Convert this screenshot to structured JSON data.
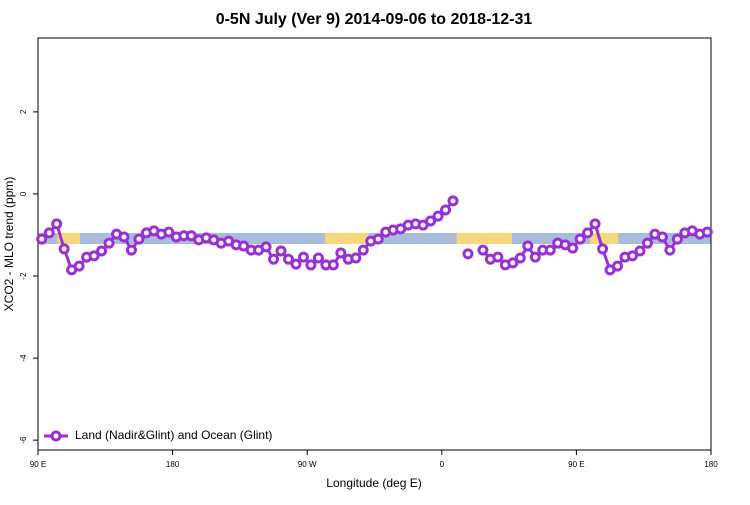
{
  "chart_data": {
    "type": "line",
    "title": "0-5N July (Ver 9)   2014-09-06 to 2018-12-31",
    "xlabel": "Longitude (deg E)",
    "ylabel": "XCO2 - MLO trend (ppm)",
    "xlim": [
      90,
      540
    ],
    "ylim": [
      -6.24,
      3.8
    ],
    "xticks": [
      {
        "value": 90,
        "label": "90 E"
      },
      180,
      {
        "value": 270,
        "label": "90 W"
      },
      {
        "value": 360,
        "label": "0"
      },
      {
        "value": 450,
        "label": "90 E"
      },
      {
        "value": 540,
        "label": "180"
      }
    ],
    "yticks": [
      -6,
      -4,
      -2,
      0,
      2
    ],
    "legend": "bottom-left",
    "band": {
      "range": [
        -1.22,
        -0.95
      ],
      "ocean_color": "#a9bcdc",
      "land_color": "#f6d77e",
      "land_segments": [
        [
          103,
          118
        ],
        [
          282,
          311
        ],
        [
          370,
          407
        ],
        [
          459,
          478
        ]
      ]
    },
    "x": [
      92.5,
      97.5,
      102.5,
      107.5,
      112.5,
      117.5,
      122.5,
      127.5,
      132.5,
      137.5,
      142.5,
      147.5,
      152.5,
      157.5,
      162.5,
      167.5,
      172.5,
      177.5,
      182.5,
      187.5,
      192.5,
      197.5,
      202.5,
      207.5,
      212.5,
      217.5,
      222.5,
      227.5,
      232.5,
      237.5,
      242.5,
      247.5,
      252.5,
      257.5,
      262.5,
      267.5,
      272.5,
      277.5,
      282.5,
      287.5,
      292.5,
      297.5,
      302.5,
      307.5,
      312.5,
      317.5,
      322.5,
      327.5,
      332.5,
      337.5,
      342.5,
      347.5,
      352.5,
      357.5,
      362.5,
      367.5,
      372.5,
      377.5,
      382.5,
      387.5,
      392.5,
      397.5,
      402.5,
      407.5,
      412.5,
      417.5,
      422.5,
      427.5,
      432.5,
      437.5,
      442.5,
      447.5,
      452.5,
      457.5,
      462.5,
      467.5,
      472.5,
      477.5,
      482.5,
      487.5,
      492.5,
      497.5,
      502.5,
      507.5,
      512.5,
      517.5,
      522.5,
      527.5,
      532.5,
      537.5
    ],
    "series": [
      {
        "name": "Land (Nadir&Glint) and Ocean (Glint)",
        "color": "#9b2fd6",
        "values": [
          -1.1,
          -0.95,
          -0.73,
          -1.34,
          -1.85,
          -1.76,
          -1.54,
          -1.51,
          -1.39,
          -1.2,
          -0.98,
          -1.05,
          -1.37,
          -1.1,
          -0.95,
          -0.9,
          -0.98,
          -0.93,
          -1.05,
          -1.02,
          -1.02,
          -1.12,
          -1.07,
          -1.12,
          -1.2,
          -1.15,
          -1.24,
          -1.27,
          -1.37,
          -1.37,
          -1.29,
          -1.59,
          -1.39,
          -1.59,
          -1.71,
          -1.54,
          -1.73,
          -1.56,
          -1.73,
          -1.73,
          -1.44,
          -1.59,
          -1.56,
          -1.37,
          -1.15,
          -1.1,
          -0.93,
          -0.88,
          -0.85,
          -0.76,
          -0.73,
          -0.76,
          -0.66,
          -0.54,
          -0.39,
          -0.17,
          null,
          -1.46,
          null,
          -1.37,
          -1.59,
          -1.54,
          -1.73,
          -1.68,
          -1.56,
          -1.27,
          -1.54,
          -1.37,
          -1.37,
          -1.2,
          -1.24,
          -1.32,
          -1.1,
          -0.95,
          -0.73,
          -1.34,
          -1.85,
          -1.76,
          -1.54,
          -1.51,
          -1.39,
          -1.2,
          -0.98,
          -1.05,
          -1.37,
          -1.1,
          -0.95,
          -0.9,
          -0.98,
          -0.93
        ]
      }
    ]
  }
}
